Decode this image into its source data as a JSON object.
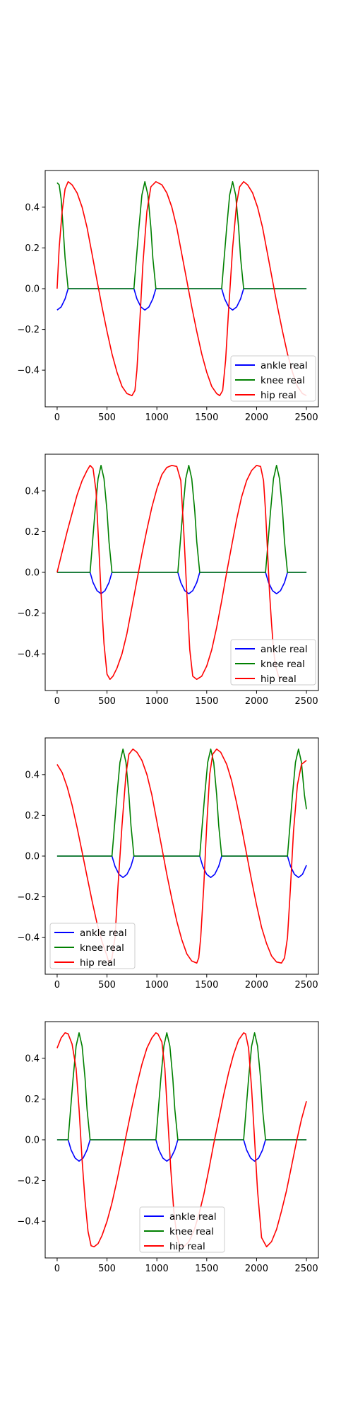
{
  "chart_data": [
    {
      "type": "line",
      "title": "",
      "xlabel": "",
      "ylabel": "",
      "xlim": [
        -120,
        2620
      ],
      "ylim": [
        -0.58,
        0.58
      ],
      "xticks": [
        0,
        500,
        1000,
        1500,
        2000,
        2500
      ],
      "yticks": [
        -0.4,
        -0.2,
        0.0,
        0.2,
        0.4
      ],
      "xtick_labels": [
        "0",
        "500",
        "1000",
        "1500",
        "2000",
        "2500"
      ],
      "ytick_labels": [
        "−0.4",
        "−0.2",
        "0.0",
        "0.2",
        "0.4"
      ],
      "grid": false,
      "legend_position": "lower-right",
      "series": [
        {
          "name": "ankle real",
          "color": "#0000ff",
          "x": [
            0,
            40,
            80,
            110,
            770,
            800,
            840,
            880,
            920,
            960,
            990,
            1650,
            1680,
            1720,
            1760,
            1800,
            1840,
            1870,
            2500
          ],
          "y": [
            -0.105,
            -0.09,
            -0.05,
            0.0,
            0.0,
            -0.05,
            -0.09,
            -0.105,
            -0.09,
            -0.05,
            0.0,
            0.0,
            -0.05,
            -0.09,
            -0.105,
            -0.09,
            -0.05,
            0.0,
            0.0
          ]
        },
        {
          "name": "knee real",
          "color": "#008000",
          "x": [
            0,
            20,
            40,
            60,
            80,
            110,
            770,
            790,
            820,
            850,
            880,
            910,
            940,
            960,
            990,
            1650,
            1670,
            1700,
            1730,
            1760,
            1790,
            1820,
            1840,
            1870,
            2500
          ],
          "y": [
            0.52,
            0.51,
            0.44,
            0.3,
            0.15,
            0.0,
            0.0,
            0.12,
            0.3,
            0.46,
            0.525,
            0.46,
            0.3,
            0.15,
            0.0,
            0.0,
            0.12,
            0.3,
            0.46,
            0.525,
            0.46,
            0.3,
            0.15,
            0.0,
            0.0
          ]
        },
        {
          "name": "hip real",
          "color": "#ff0000",
          "x": [
            0,
            20,
            50,
            80,
            110,
            150,
            200,
            250,
            300,
            350,
            400,
            450,
            500,
            550,
            600,
            650,
            700,
            750,
            780,
            800,
            830,
            860,
            900,
            940,
            990,
            1050,
            1100,
            1150,
            1200,
            1250,
            1300,
            1350,
            1400,
            1450,
            1500,
            1550,
            1600,
            1630,
            1660,
            1690,
            1720,
            1760,
            1800,
            1830,
            1870,
            1910,
            1960,
            2010,
            2060,
            2110,
            2160,
            2210,
            2260,
            2310,
            2360,
            2410,
            2460,
            2500
          ],
          "y": [
            0.0,
            0.2,
            0.38,
            0.49,
            0.525,
            0.51,
            0.47,
            0.4,
            0.3,
            0.17,
            0.04,
            -0.09,
            -0.21,
            -0.32,
            -0.41,
            -0.48,
            -0.515,
            -0.525,
            -0.5,
            -0.4,
            -0.15,
            0.12,
            0.38,
            0.5,
            0.525,
            0.51,
            0.47,
            0.4,
            0.3,
            0.17,
            0.04,
            -0.09,
            -0.21,
            -0.32,
            -0.41,
            -0.48,
            -0.515,
            -0.525,
            -0.5,
            -0.35,
            -0.1,
            0.2,
            0.42,
            0.5,
            0.525,
            0.51,
            0.47,
            0.4,
            0.3,
            0.17,
            0.04,
            -0.09,
            -0.21,
            -0.32,
            -0.41,
            -0.48,
            -0.515,
            -0.525
          ]
        }
      ]
    },
    {
      "type": "line",
      "title": "",
      "xlabel": "",
      "ylabel": "",
      "xlim": [
        -120,
        2620
      ],
      "ylim": [
        -0.58,
        0.58
      ],
      "xticks": [
        0,
        500,
        1000,
        1500,
        2000,
        2500
      ],
      "yticks": [
        -0.4,
        -0.2,
        0.0,
        0.2,
        0.4
      ],
      "xtick_labels": [
        "0",
        "500",
        "1000",
        "1500",
        "2000",
        "2500"
      ],
      "ytick_labels": [
        "−0.4",
        "−0.2",
        "0.0",
        "0.2",
        "0.4"
      ],
      "grid": false,
      "legend_position": "lower-right",
      "series": [
        {
          "name": "ankle real",
          "color": "#0000ff",
          "x": [
            0,
            330,
            360,
            400,
            440,
            480,
            520,
            550,
            1210,
            1240,
            1280,
            1320,
            1360,
            1400,
            1430,
            2090,
            2120,
            2160,
            2200,
            2240,
            2280,
            2310,
            2500
          ],
          "y": [
            0.0,
            0.0,
            -0.05,
            -0.09,
            -0.105,
            -0.09,
            -0.05,
            0.0,
            0.0,
            -0.05,
            -0.09,
            -0.105,
            -0.09,
            -0.05,
            0.0,
            0.0,
            -0.05,
            -0.09,
            -0.105,
            -0.09,
            -0.05,
            0.0,
            0.0
          ]
        },
        {
          "name": "knee real",
          "color": "#008000",
          "x": [
            0,
            330,
            350,
            380,
            410,
            440,
            470,
            500,
            520,
            550,
            1210,
            1230,
            1260,
            1290,
            1320,
            1350,
            1380,
            1400,
            1430,
            2090,
            2110,
            2140,
            2170,
            2200,
            2230,
            2260,
            2280,
            2310,
            2500
          ],
          "y": [
            0.0,
            0.0,
            0.12,
            0.3,
            0.46,
            0.525,
            0.46,
            0.3,
            0.15,
            0.0,
            0.0,
            0.12,
            0.3,
            0.46,
            0.525,
            0.46,
            0.3,
            0.15,
            0.0,
            0.0,
            0.12,
            0.3,
            0.46,
            0.525,
            0.46,
            0.3,
            0.15,
            0.0,
            0.0
          ]
        },
        {
          "name": "hip real",
          "color": "#ff0000",
          "x": [
            0,
            50,
            100,
            150,
            200,
            250,
            300,
            330,
            360,
            390,
            410,
            440,
            470,
            500,
            530,
            560,
            600,
            650,
            700,
            750,
            800,
            850,
            900,
            950,
            1000,
            1050,
            1100,
            1150,
            1200,
            1240,
            1270,
            1300,
            1330,
            1360,
            1400,
            1450,
            1500,
            1550,
            1600,
            1650,
            1700,
            1750,
            1800,
            1850,
            1900,
            1950,
            2000,
            2040,
            2070,
            2090,
            2110,
            2130,
            2150,
            2170,
            2190,
            2220,
            2240
          ],
          "y": [
            0.0,
            0.1,
            0.2,
            0.29,
            0.38,
            0.45,
            0.5,
            0.525,
            0.51,
            0.4,
            0.2,
            -0.1,
            -0.35,
            -0.5,
            -0.525,
            -0.51,
            -0.47,
            -0.4,
            -0.3,
            -0.17,
            -0.04,
            0.09,
            0.21,
            0.32,
            0.41,
            0.48,
            0.515,
            0.525,
            0.52,
            0.45,
            0.2,
            -0.1,
            -0.38,
            -0.51,
            -0.525,
            -0.51,
            -0.46,
            -0.38,
            -0.27,
            -0.14,
            0.0,
            0.13,
            0.26,
            0.37,
            0.45,
            0.5,
            0.525,
            0.52,
            0.45,
            0.3,
            0.1,
            -0.1,
            -0.25,
            -0.38,
            -0.46,
            -0.51,
            -0.525
          ]
        }
      ]
    },
    {
      "type": "line",
      "title": "",
      "xlabel": "",
      "ylabel": "",
      "xlim": [
        -120,
        2620
      ],
      "ylim": [
        -0.58,
        0.58
      ],
      "xticks": [
        0,
        500,
        1000,
        1500,
        2000,
        2500
      ],
      "yticks": [
        -0.4,
        -0.2,
        0.0,
        0.2,
        0.4
      ],
      "xtick_labels": [
        "0",
        "500",
        "1000",
        "1500",
        "2000",
        "2500"
      ],
      "ytick_labels": [
        "−0.4",
        "−0.2",
        "0.0",
        "0.2",
        "0.4"
      ],
      "grid": false,
      "legend_position": "lower-left",
      "series": [
        {
          "name": "ankle real",
          "color": "#0000ff",
          "x": [
            0,
            550,
            580,
            620,
            660,
            700,
            740,
            770,
            1430,
            1460,
            1500,
            1540,
            1580,
            1620,
            1650,
            2310,
            2340,
            2380,
            2420,
            2460,
            2500
          ],
          "y": [
            0.0,
            0.0,
            -0.05,
            -0.09,
            -0.105,
            -0.09,
            -0.05,
            0.0,
            0.0,
            -0.05,
            -0.09,
            -0.105,
            -0.09,
            -0.05,
            0.0,
            0.0,
            -0.05,
            -0.09,
            -0.105,
            -0.09,
            -0.045
          ]
        },
        {
          "name": "knee real",
          "color": "#008000",
          "x": [
            0,
            550,
            570,
            600,
            630,
            660,
            690,
            720,
            740,
            770,
            1430,
            1450,
            1480,
            1510,
            1540,
            1570,
            1600,
            1620,
            1650,
            2310,
            2330,
            2360,
            2390,
            2420,
            2450,
            2480,
            2500
          ],
          "y": [
            0.0,
            0.0,
            0.12,
            0.3,
            0.46,
            0.525,
            0.46,
            0.3,
            0.15,
            0.0,
            0.0,
            0.12,
            0.3,
            0.46,
            0.525,
            0.46,
            0.3,
            0.15,
            0.0,
            0.0,
            0.12,
            0.3,
            0.46,
            0.525,
            0.46,
            0.3,
            0.23
          ]
        },
        {
          "name": "hip real",
          "color": "#ff0000",
          "x": [
            0,
            50,
            100,
            150,
            200,
            250,
            300,
            350,
            400,
            450,
            500,
            520,
            550,
            580,
            610,
            650,
            690,
            720,
            760,
            800,
            850,
            900,
            950,
            1000,
            1050,
            1100,
            1150,
            1200,
            1250,
            1300,
            1350,
            1400,
            1420,
            1440,
            1470,
            1500,
            1530,
            1560,
            1600,
            1640,
            1700,
            1750,
            1800,
            1850,
            1900,
            1950,
            2000,
            2050,
            2100,
            2150,
            2200,
            2250,
            2280,
            2310,
            2340,
            2370,
            2410,
            2450,
            2500
          ],
          "y": [
            0.45,
            0.41,
            0.34,
            0.25,
            0.14,
            0.02,
            -0.1,
            -0.22,
            -0.33,
            -0.42,
            -0.49,
            -0.525,
            -0.5,
            -0.4,
            -0.15,
            0.15,
            0.4,
            0.5,
            0.525,
            0.51,
            0.47,
            0.4,
            0.3,
            0.17,
            0.04,
            -0.09,
            -0.21,
            -0.32,
            -0.41,
            -0.48,
            -0.515,
            -0.525,
            -0.5,
            -0.4,
            -0.15,
            0.15,
            0.4,
            0.5,
            0.525,
            0.51,
            0.45,
            0.37,
            0.26,
            0.14,
            0.01,
            -0.12,
            -0.24,
            -0.35,
            -0.43,
            -0.49,
            -0.52,
            -0.525,
            -0.5,
            -0.4,
            -0.15,
            0.12,
            0.35,
            0.45,
            0.47
          ]
        }
      ]
    },
    {
      "type": "line",
      "title": "",
      "xlabel": "",
      "ylabel": "",
      "xlim": [
        -120,
        2620
      ],
      "ylim": [
        -0.58,
        0.58
      ],
      "xticks": [
        0,
        500,
        1000,
        1500,
        2000,
        2500
      ],
      "yticks": [
        -0.4,
        -0.2,
        0.0,
        0.2,
        0.4
      ],
      "xtick_labels": [
        "0",
        "500",
        "1000",
        "1500",
        "2000",
        "2500"
      ],
      "ytick_labels": [
        "−0.4",
        "−0.2",
        "0.0",
        "0.2",
        "0.4"
      ],
      "grid": false,
      "legend_position": "lower-center",
      "series": [
        {
          "name": "ankle real",
          "color": "#0000ff",
          "x": [
            0,
            110,
            140,
            180,
            220,
            260,
            300,
            330,
            990,
            1020,
            1060,
            1100,
            1140,
            1180,
            1210,
            1870,
            1900,
            1940,
            1980,
            2020,
            2060,
            2090,
            2500
          ],
          "y": [
            0.0,
            0.0,
            -0.05,
            -0.09,
            -0.105,
            -0.09,
            -0.05,
            0.0,
            0.0,
            -0.05,
            -0.09,
            -0.105,
            -0.09,
            -0.05,
            0.0,
            0.0,
            -0.05,
            -0.09,
            -0.105,
            -0.09,
            -0.05,
            0.0,
            0.0
          ]
        },
        {
          "name": "knee real",
          "color": "#008000",
          "x": [
            0,
            110,
            130,
            160,
            190,
            220,
            250,
            280,
            300,
            330,
            990,
            1010,
            1040,
            1070,
            1100,
            1130,
            1160,
            1180,
            1210,
            1870,
            1890,
            1920,
            1950,
            1980,
            2010,
            2040,
            2060,
            2090,
            2500
          ],
          "y": [
            0.0,
            0.0,
            0.12,
            0.3,
            0.46,
            0.525,
            0.46,
            0.3,
            0.15,
            0.0,
            0.0,
            0.12,
            0.3,
            0.46,
            0.525,
            0.46,
            0.3,
            0.15,
            0.0,
            0.0,
            0.12,
            0.3,
            0.46,
            0.525,
            0.46,
            0.3,
            0.15,
            0.0,
            0.0
          ]
        },
        {
          "name": "hip real",
          "color": "#ff0000",
          "x": [
            0,
            40,
            80,
            110,
            150,
            190,
            220,
            250,
            280,
            310,
            340,
            370,
            410,
            450,
            500,
            550,
            600,
            650,
            700,
            750,
            800,
            850,
            900,
            950,
            990,
            1010,
            1050,
            1080,
            1110,
            1140,
            1170,
            1200,
            1230,
            1270,
            1320,
            1370,
            1420,
            1470,
            1520,
            1570,
            1620,
            1670,
            1720,
            1770,
            1820,
            1870,
            1890,
            1920,
            1950,
            1980,
            2010,
            2050,
            2100,
            2150,
            2200,
            2250,
            2300,
            2350,
            2400,
            2450,
            2500
          ],
          "y": [
            0.45,
            0.5,
            0.525,
            0.52,
            0.47,
            0.35,
            0.15,
            -0.1,
            -0.3,
            -0.45,
            -0.52,
            -0.525,
            -0.51,
            -0.47,
            -0.4,
            -0.31,
            -0.2,
            -0.08,
            0.04,
            0.16,
            0.27,
            0.37,
            0.45,
            0.5,
            0.525,
            0.52,
            0.48,
            0.35,
            0.1,
            -0.15,
            -0.35,
            -0.47,
            -0.52,
            -0.525,
            -0.5,
            -0.45,
            -0.37,
            -0.27,
            -0.15,
            -0.02,
            0.1,
            0.22,
            0.33,
            0.42,
            0.49,
            0.525,
            0.52,
            0.45,
            0.25,
            0.0,
            -0.25,
            -0.48,
            -0.525,
            -0.5,
            -0.44,
            -0.35,
            -0.25,
            -0.13,
            -0.01,
            0.1,
            0.19
          ]
        }
      ]
    }
  ]
}
